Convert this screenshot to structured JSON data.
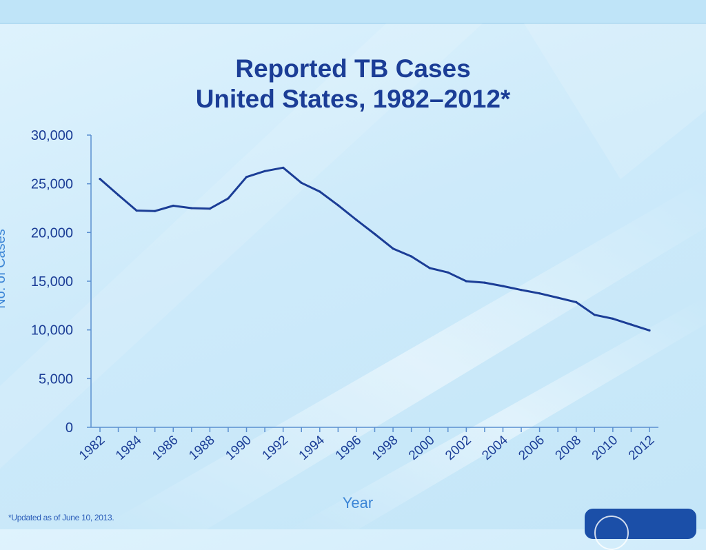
{
  "chart_data": {
    "type": "line",
    "title_line1": "Reported TB Cases",
    "title_line2": "United States, 1982–2012*",
    "xlabel": "Year",
    "ylabel": "No. of Cases",
    "ylim": [
      0,
      30000
    ],
    "y_ticks": [
      0,
      5000,
      10000,
      15000,
      20000,
      25000,
      30000
    ],
    "y_tick_labels": [
      "0",
      "5,000",
      "10,000",
      "15,000",
      "20,000",
      "25,000",
      "30,000"
    ],
    "x_tick_labels": [
      "1982",
      "1984",
      "1986",
      "1988",
      "1990",
      "1992",
      "1994",
      "1996",
      "1998",
      "2000",
      "2002",
      "2004",
      "2006",
      "2008",
      "2010",
      "2012"
    ],
    "x": [
      1982,
      1983,
      1984,
      1985,
      1986,
      1987,
      1988,
      1989,
      1990,
      1991,
      1992,
      1993,
      1994,
      1995,
      1996,
      1997,
      1998,
      1999,
      2000,
      2001,
      2002,
      2003,
      2004,
      2005,
      2006,
      2007,
      2008,
      2009,
      2010,
      2011,
      2012
    ],
    "series": [
      {
        "name": "Reported TB Cases",
        "values": [
          25500,
          23850,
          22250,
          22200,
          22750,
          22500,
          22450,
          23500,
          25700,
          26300,
          26650,
          25100,
          24200,
          22800,
          21300,
          19850,
          18350,
          17550,
          16350,
          15900,
          15000,
          14850,
          14500,
          14100,
          13750,
          13300,
          12850,
          11550,
          11150,
          10550,
          9950
        ]
      }
    ],
    "footnote": "*Updated as of June 10, 2013.",
    "colors": {
      "line": "#1b3d96",
      "axis": "#5a8fd0",
      "tick_text": "#1b3d96",
      "axis_label_text": "#3d86d6"
    }
  }
}
